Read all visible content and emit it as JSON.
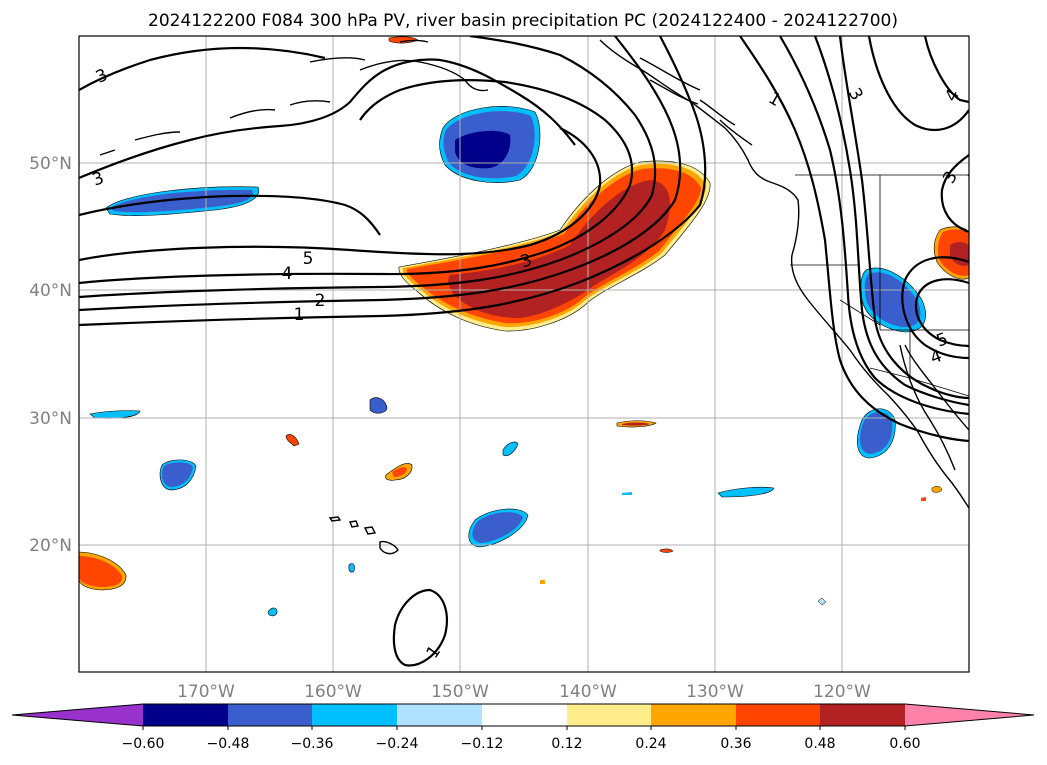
{
  "title": "2024122200 F084 300 hPa PV, river basin precipitation PC (2024122400 - 2024122700)",
  "lat_ticks": [
    "20°N",
    "30°N",
    "40°N",
    "50°N"
  ],
  "lon_ticks": [
    "170°W",
    "160°W",
    "150°W",
    "140°W",
    "130°W",
    "120°W"
  ],
  "colorbar": {
    "labels": [
      "−0.60",
      "−0.48",
      "−0.36",
      "−0.24",
      "−0.12",
      "0.12",
      "0.24",
      "0.36",
      "0.48",
      "0.60"
    ],
    "colors": [
      "#9932cc",
      "#00008b",
      "#3a5fcd",
      "#00bfff",
      "#b0e2ff",
      "#ffffff",
      "#ffec8b",
      "#ffa500",
      "#ff4500",
      "#b22222",
      "#ff82ab"
    ]
  },
  "contour_labels": {
    "nw_3a": "3",
    "nw_3b": "3",
    "jet_5": "5",
    "jet_4": "4",
    "jet_2": "2",
    "jet_1": "1",
    "ridge_3": "3",
    "ridge_1": "1",
    "east_3": "3",
    "east_4": "4",
    "east_3b": "3",
    "low_5": "5",
    "low_4": "4",
    "south_1": "1"
  }
}
